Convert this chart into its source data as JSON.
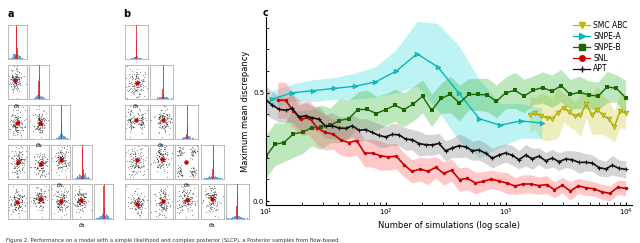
{
  "panel_c": {
    "xlabel": "Number of simulations (log scale)",
    "ylabel": "Maximum mean discrepancy",
    "ylim": [
      -0.02,
      0.85
    ],
    "legend_entries": [
      "SMC ABC",
      "SNPE-A",
      "SNPE-B",
      "SNL",
      "APT"
    ],
    "legend_colors": [
      "#b8b800",
      "#00b8b8",
      "#1a6600",
      "#cc0000",
      "#111111"
    ],
    "legend_fill_colors": [
      "#cccc00",
      "#00dddd",
      "#33aa33",
      "#ff4444",
      "#555555"
    ],
    "legend_markers": [
      "v",
      ">",
      "s",
      "o",
      "+"
    ]
  },
  "panel_a_label": "a",
  "panel_b_label": "b",
  "panel_c_label": "c",
  "caption": "Figure 2. Performance on a model with a simple likelihood and complex posterior (SLCP). a Posterior samples from flow-based"
}
